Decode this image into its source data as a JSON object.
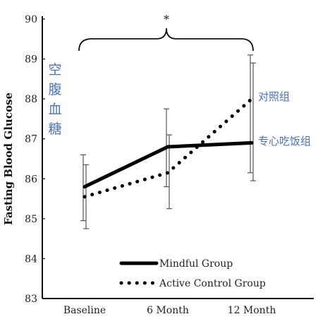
{
  "chart_data": {
    "type": "line",
    "title": "",
    "xlabel": "",
    "ylabel": "Fasting Blood Glucose",
    "ylim": [
      83,
      90
    ],
    "yticks": [
      "83",
      "84",
      "85",
      "86",
      "87",
      "88",
      "89",
      "90"
    ],
    "categories": [
      "Baseline",
      "6 Month",
      "12 Month"
    ],
    "series": [
      {
        "name": "Mindful Group",
        "values": [
          85.8,
          86.8,
          86.9
        ],
        "error_low": [
          84.95,
          85.8,
          86.15
        ],
        "error_high": [
          86.6,
          87.75,
          89.1
        ],
        "style": "solid",
        "color": "#000000"
      },
      {
        "name": "Active Control Group",
        "values": [
          85.55,
          86.15,
          88.0
        ],
        "error_low": [
          84.75,
          85.25,
          85.95
        ],
        "error_high": [
          86.35,
          87.1,
          88.9
        ],
        "style": "dotted",
        "color": "#000000"
      }
    ],
    "legend_position": "bottom-right",
    "grid": false,
    "significance_marker": "*",
    "annotations": {
      "y_axis_cn": "空腹血糖",
      "active_control_cn": "对照组",
      "mindful_cn": "专心吃饭组",
      "annotation_color": "#4a72c4"
    }
  }
}
